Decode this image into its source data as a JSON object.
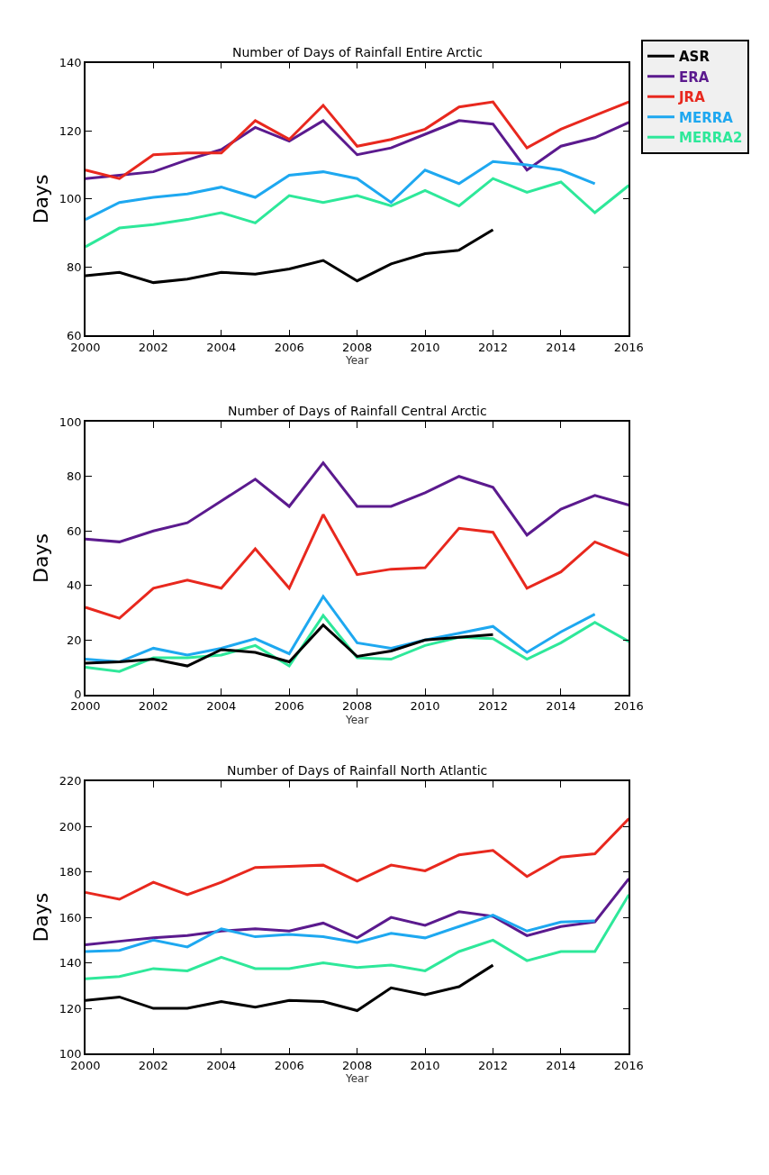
{
  "chart_data": [
    {
      "type": "line",
      "title": "Number of Days of Rainfall Entire Arctic",
      "xlabel": "Year",
      "ylabel": "Days",
      "x": [
        2000,
        2001,
        2002,
        2003,
        2004,
        2005,
        2006,
        2007,
        2008,
        2009,
        2010,
        2011,
        2012,
        2013,
        2014,
        2015,
        2016
      ],
      "xlim": [
        2000,
        2016
      ],
      "xticks": [
        2000,
        2002,
        2004,
        2006,
        2008,
        2010,
        2012,
        2014,
        2016
      ],
      "ylim": [
        60,
        140
      ],
      "yticks": [
        60,
        80,
        100,
        120,
        140
      ],
      "legend": "top right",
      "marker": "none",
      "line_style": "solid",
      "series": [
        {
          "name": "ASR",
          "color": "#000000",
          "values": [
            77.5,
            78.5,
            75.5,
            76.5,
            78.5,
            78,
            79.5,
            82,
            76,
            81,
            84,
            85,
            91,
            null,
            null,
            null,
            null
          ]
        },
        {
          "name": "ERA",
          "color": "#5b1a8e",
          "values": [
            106,
            107,
            108,
            111.5,
            114.5,
            121,
            117,
            123,
            113,
            115,
            119,
            123,
            122,
            108.5,
            115.5,
            118,
            122.5
          ]
        },
        {
          "name": "JRA",
          "color": "#e8281e",
          "values": [
            108.5,
            106,
            113,
            113.5,
            113.5,
            123,
            117.5,
            127.5,
            115.5,
            117.5,
            120.5,
            127,
            128.5,
            115,
            120.5,
            124.5,
            128.5
          ]
        },
        {
          "name": "MERRA",
          "color": "#1ea8f0",
          "values": [
            94,
            99,
            100.5,
            101.5,
            103.5,
            100.5,
            107,
            108,
            106,
            99,
            108.5,
            104.5,
            111,
            110,
            108.5,
            104.5,
            null
          ]
        },
        {
          "name": "MERRA2",
          "color": "#2ee89a",
          "values": [
            86,
            91.5,
            92.5,
            94,
            96,
            93,
            101,
            99,
            101,
            98,
            102.5,
            98,
            106,
            102,
            105,
            96,
            104
          ]
        }
      ]
    },
    {
      "type": "line",
      "title": "Number of Days of Rainfall Central Arctic",
      "xlabel": "Year",
      "ylabel": "Days",
      "x": [
        2000,
        2001,
        2002,
        2003,
        2004,
        2005,
        2006,
        2007,
        2008,
        2009,
        2010,
        2011,
        2012,
        2013,
        2014,
        2015,
        2016
      ],
      "xlim": [
        2000,
        2016
      ],
      "xticks": [
        2000,
        2002,
        2004,
        2006,
        2008,
        2010,
        2012,
        2014,
        2016
      ],
      "ylim": [
        0,
        100
      ],
      "yticks": [
        0,
        20,
        40,
        60,
        80,
        100
      ],
      "marker": "none",
      "line_style": "solid",
      "series": [
        {
          "color": "#5b1a8e",
          "values": [
            57,
            56,
            60,
            63,
            71,
            79,
            69,
            85,
            69,
            69,
            74,
            80,
            76,
            58.5,
            68,
            73,
            69.5
          ]
        },
        {
          "color": "#e8281e",
          "values": [
            32,
            28,
            39,
            42,
            39,
            53.5,
            39,
            66,
            44,
            46,
            46.5,
            61,
            59.5,
            39,
            45,
            56,
            51
          ]
        },
        {
          "color": "#1ea8f0",
          "values": [
            13,
            12,
            17,
            14.5,
            17,
            20.5,
            15,
            36,
            19,
            17,
            20,
            22.5,
            25,
            15.5,
            23,
            29.5,
            null
          ]
        },
        {
          "color": "#2ee89a",
          "values": [
            10,
            8.5,
            13.5,
            13.5,
            14.5,
            18,
            10.5,
            29,
            13.5,
            13,
            18,
            21,
            20.5,
            13,
            19,
            26.5,
            19.5
          ]
        },
        {
          "color": "#000000",
          "values": [
            11.5,
            12,
            13,
            10.5,
            16.5,
            15.5,
            12,
            25.5,
            14,
            16,
            20,
            21,
            22,
            null,
            null,
            null,
            null
          ]
        }
      ]
    },
    {
      "type": "line",
      "title": "Number of Days of Rainfall North Atlantic",
      "xlabel": "Year",
      "ylabel": "Days",
      "x": [
        2000,
        2001,
        2002,
        2003,
        2004,
        2005,
        2006,
        2007,
        2008,
        2009,
        2010,
        2011,
        2012,
        2013,
        2014,
        2015,
        2016
      ],
      "xlim": [
        2000,
        2016
      ],
      "xticks": [
        2000,
        2002,
        2004,
        2006,
        2008,
        2010,
        2012,
        2014,
        2016
      ],
      "ylim": [
        100,
        220
      ],
      "yticks": [
        100,
        120,
        140,
        160,
        180,
        200,
        220
      ],
      "marker": "none",
      "line_style": "solid",
      "series": [
        {
          "color": "#e8281e",
          "values": [
            171,
            168,
            175.5,
            170,
            175.5,
            182,
            182.5,
            183,
            176,
            183,
            180.5,
            187.5,
            189.5,
            178,
            186.5,
            188,
            203.5
          ]
        },
        {
          "color": "#5b1a8e",
          "values": [
            148,
            149.5,
            151,
            152,
            154,
            155,
            154,
            157.5,
            151,
            160,
            156.5,
            162.5,
            160.5,
            152,
            156,
            158,
            177
          ]
        },
        {
          "color": "#1ea8f0",
          "values": [
            145,
            145.5,
            150,
            147,
            155,
            151.5,
            152.5,
            151.5,
            149,
            153,
            151,
            156,
            161,
            154,
            158,
            158.5,
            null
          ]
        },
        {
          "color": "#2ee89a",
          "values": [
            133,
            134,
            137.5,
            136.5,
            142.5,
            137.5,
            137.5,
            140,
            138,
            139,
            136.5,
            145,
            150,
            141,
            145,
            145,
            170
          ]
        },
        {
          "color": "#000000",
          "values": [
            123.5,
            125,
            120,
            120,
            123,
            120.5,
            123.5,
            123,
            119,
            129,
            126,
            129.5,
            139,
            null,
            null,
            null,
            null
          ]
        }
      ]
    }
  ]
}
